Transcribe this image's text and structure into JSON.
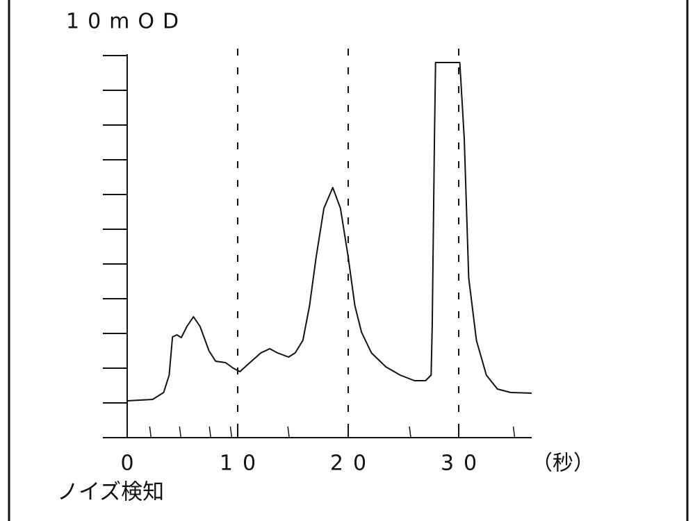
{
  "chart_data": {
    "type": "line",
    "y_label": "10mOD",
    "x_label": "（秒）",
    "annotation": "ノイズ検知",
    "xlim": [
      -2.2,
      36.6
    ],
    "ylim": [
      0,
      11
    ],
    "xticks": [
      0,
      10,
      20,
      30
    ],
    "yticks": [
      0,
      1,
      2,
      3,
      4,
      5,
      6,
      7,
      8,
      9,
      10,
      11
    ],
    "noise_marks": [
      2.1,
      4.8,
      7.5,
      9.4,
      14.6,
      25.6,
      35.0
    ],
    "grid": true,
    "x": [
      0,
      2.3,
      3.3,
      3.8,
      4.1,
      4.5,
      4.9,
      5.4,
      6.0,
      6.6,
      7.4,
      8.0,
      8.9,
      9.6,
      10.2,
      11.1,
      12.1,
      12.9,
      13.6,
      14.6,
      15.2,
      15.9,
      16.5,
      17.1,
      17.8,
      18.6,
      19.3,
      20.0,
      20.6,
      21.2,
      22.1,
      23.4,
      24.7,
      26.0,
      27.0,
      27.5,
      27.6,
      27.8,
      27.9,
      30.1,
      30.5,
      30.9,
      31.6,
      32.5,
      33.5,
      34.7,
      36.6
    ],
    "series": [
      {
        "color": "#111111",
        "values": [
          1.06,
          1.1,
          1.3,
          1.8,
          2.9,
          2.96,
          2.88,
          3.2,
          3.48,
          3.2,
          2.5,
          2.2,
          2.16,
          2.0,
          1.9,
          2.16,
          2.44,
          2.56,
          2.44,
          2.32,
          2.44,
          2.8,
          3.8,
          5.2,
          6.6,
          7.2,
          6.6,
          5.2,
          3.8,
          3.04,
          2.44,
          2.04,
          1.8,
          1.64,
          1.64,
          1.8,
          3.2,
          8.6,
          10.8,
          10.8,
          8.6,
          4.6,
          2.8,
          1.8,
          1.4,
          1.3,
          1.28
        ]
      }
    ]
  }
}
